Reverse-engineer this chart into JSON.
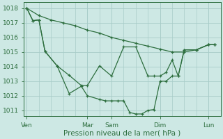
{
  "background_color": "#cde8e4",
  "grid_color": "#a8ccc8",
  "line_color": "#2d6e3e",
  "ylabel_ticks": [
    1011,
    1012,
    1013,
    1014,
    1015,
    1016,
    1017,
    1018
  ],
  "ylim": [
    1010.6,
    1018.4
  ],
  "xlabel": "Pression niveau de la mer( hPa )",
  "day_labels": [
    "Ven",
    "Mar",
    "Sam",
    "Dim",
    "Lun"
  ],
  "day_positions": [
    0,
    10,
    14,
    22,
    30
  ],
  "xlim": [
    -0.5,
    32
  ],
  "tick_fontsize": 6.5,
  "xlabel_fontsize": 7.5,
  "series1_x": [
    0,
    2,
    4,
    6,
    8,
    10,
    12,
    14,
    16,
    18,
    20,
    22,
    24,
    26,
    28,
    30,
    31
  ],
  "series1_y": [
    1018.0,
    1017.5,
    1017.2,
    1017.0,
    1016.8,
    1016.5,
    1016.3,
    1016.0,
    1015.8,
    1015.6,
    1015.4,
    1015.2,
    1015.0,
    1015.0,
    1015.15,
    1015.5,
    1015.5
  ],
  "series2_x": [
    0,
    1,
    2,
    3,
    5,
    7,
    9,
    10,
    12,
    14,
    16,
    18,
    20,
    21,
    22,
    23,
    24,
    25,
    26,
    28,
    30,
    31
  ],
  "series2_y": [
    1018.0,
    1017.15,
    1017.2,
    1015.05,
    1014.05,
    1013.4,
    1012.7,
    1012.7,
    1014.05,
    1013.35,
    1015.35,
    1015.35,
    1013.35,
    1013.35,
    1013.35,
    1013.6,
    1014.45,
    1013.35,
    1015.15,
    1015.15,
    1015.5,
    1015.5
  ],
  "series3_x": [
    0,
    1,
    2,
    3,
    5,
    7,
    9,
    10,
    12,
    13,
    14,
    15,
    16,
    17,
    18,
    19,
    20,
    21,
    22,
    23,
    24,
    25,
    26,
    28,
    30,
    31
  ],
  "series3_y": [
    1018.0,
    1017.15,
    1017.2,
    1015.05,
    1014.05,
    1012.15,
    1012.65,
    1012.0,
    1011.75,
    1011.65,
    1011.65,
    1011.65,
    1011.65,
    1010.85,
    1010.75,
    1010.75,
    1011.0,
    1011.05,
    1013.0,
    1013.0,
    1013.35,
    1013.35,
    1015.15,
    1015.15,
    1015.5,
    1015.5
  ]
}
